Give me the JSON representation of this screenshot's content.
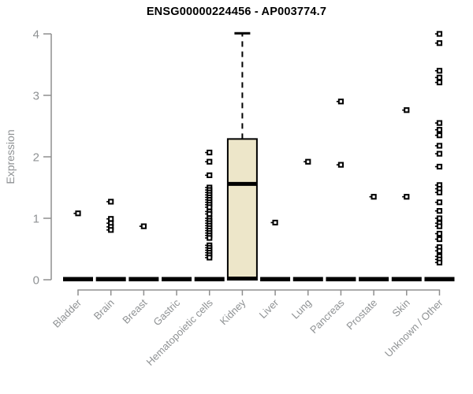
{
  "chart_data": {
    "type": "boxplot",
    "title": "ENSG00000224456 - AP003774.7",
    "ylabel": "Expression",
    "xlabel": "",
    "ylim": [
      0,
      4
    ],
    "yticks": [
      0,
      1,
      2,
      3,
      4
    ],
    "grid": false,
    "legend": "none",
    "categories": [
      "Bladder",
      "Brain",
      "Breast",
      "Gastric",
      "Hematopoietic cells",
      "Kidney",
      "Liver",
      "Lung",
      "Pancreas",
      "Prostate",
      "Skin",
      "Unknown / Other"
    ],
    "series": [
      {
        "category": "Bladder",
        "q1": 0,
        "median": 0,
        "q3": 0,
        "whisker_low": 0,
        "whisker_high": 0,
        "outliers": [
          1.08
        ]
      },
      {
        "category": "Brain",
        "q1": 0,
        "median": 0,
        "q3": 0,
        "whisker_low": 0,
        "whisker_high": 0,
        "outliers": [
          1.27,
          0.99,
          0.92,
          0.86,
          0.81
        ]
      },
      {
        "category": "Breast",
        "q1": 0,
        "median": 0,
        "q3": 0,
        "whisker_low": 0,
        "whisker_high": 0,
        "outliers": [
          0.87
        ]
      },
      {
        "category": "Gastric",
        "q1": 0,
        "median": 0,
        "q3": 0,
        "whisker_low": 0,
        "whisker_high": 0,
        "outliers": []
      },
      {
        "category": "Hematopoietic cells",
        "q1": 0,
        "median": 0,
        "q3": 0,
        "whisker_low": 0,
        "whisker_high": 0,
        "outliers": [
          2.07,
          1.92,
          1.7,
          1.5,
          1.46,
          1.42,
          1.38,
          1.34,
          1.3,
          1.26,
          1.22,
          1.18,
          1.11,
          1.07,
          1.0,
          0.96,
          0.92,
          0.88,
          0.84,
          0.8,
          0.76,
          0.72,
          0.68,
          0.56,
          0.52,
          0.48,
          0.44,
          0.4,
          0.36
        ]
      },
      {
        "category": "Kidney",
        "q1": 0,
        "median": 1.56,
        "q3": 2.29,
        "whisker_low": 0,
        "whisker_high": 4.01,
        "outliers": []
      },
      {
        "category": "Liver",
        "q1": 0,
        "median": 0,
        "q3": 0,
        "whisker_low": 0,
        "whisker_high": 0,
        "outliers": [
          0.93
        ]
      },
      {
        "category": "Lung",
        "q1": 0,
        "median": 0,
        "q3": 0,
        "whisker_low": 0,
        "whisker_high": 0,
        "outliers": [
          1.92
        ]
      },
      {
        "category": "Pancreas",
        "q1": 0,
        "median": 0,
        "q3": 0,
        "whisker_low": 0,
        "whisker_high": 0,
        "outliers": [
          2.9,
          1.87
        ]
      },
      {
        "category": "Prostate",
        "q1": 0,
        "median": 0,
        "q3": 0,
        "whisker_low": 0,
        "whisker_high": 0,
        "outliers": [
          1.35
        ]
      },
      {
        "category": "Skin",
        "q1": 0,
        "median": 0,
        "q3": 0,
        "whisker_low": 0,
        "whisker_high": 0,
        "outliers": [
          2.76,
          1.35
        ]
      },
      {
        "category": "Unknown / Other",
        "q1": 0,
        "median": 0,
        "q3": 0,
        "whisker_low": 0,
        "whisker_high": 0,
        "outliers": [
          4.0,
          3.85,
          3.4,
          3.29,
          3.21,
          2.55,
          2.44,
          2.35,
          2.18,
          2.05,
          1.84,
          1.54,
          1.48,
          1.42,
          1.26,
          1.12,
          1.0,
          0.92,
          0.87,
          0.75,
          0.66,
          0.53,
          0.47,
          0.38,
          0.33,
          0.28
        ]
      }
    ],
    "colors": {
      "background": "#FFFFFF",
      "box_fill": "#EDE6C9",
      "box_stroke": "#000000",
      "median": "#000000",
      "marker": "#000000",
      "axis": "#8F8F8F",
      "tick_text": "#8F9294",
      "title_text": "#000000"
    }
  }
}
